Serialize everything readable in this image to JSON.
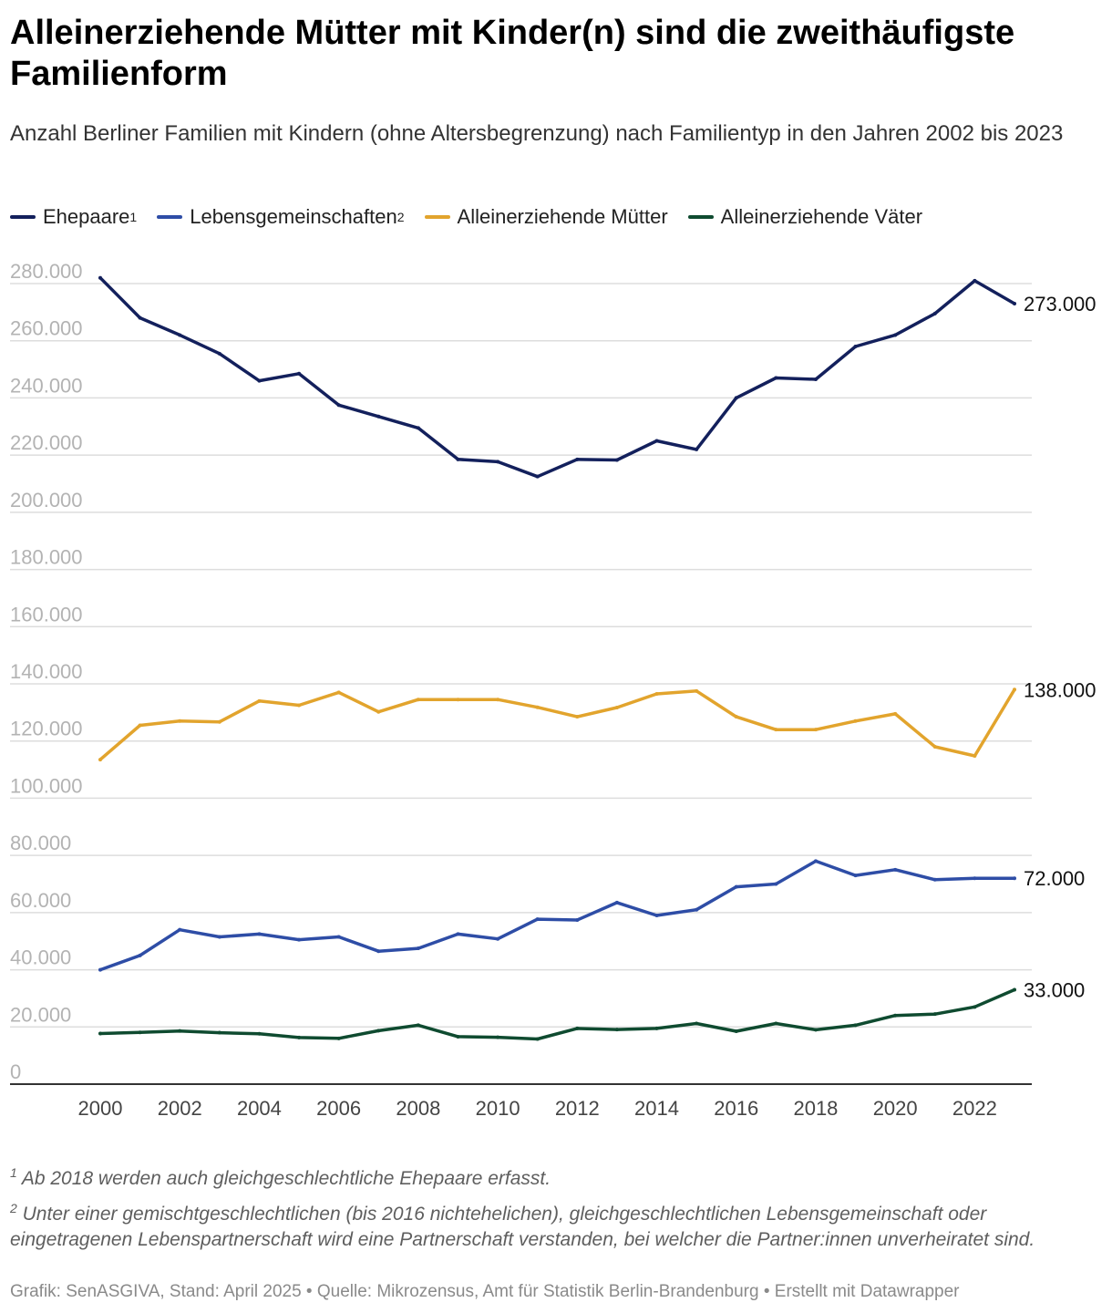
{
  "header": {
    "title": "Alleinerziehende Mütter mit Kinder(n) sind die zweithäufigste Familienform",
    "subtitle": "Anzahl Berliner Familien mit Kindern (ohne Altersbegrenzung) nach Familientyp in den Jahren 2002 bis 2023"
  },
  "legend": [
    {
      "label": "Ehepaare",
      "sup": "1",
      "color": "#13205c"
    },
    {
      "label": "Lebensgemeinschaften",
      "sup": "2",
      "color": "#2e4da6"
    },
    {
      "label": "Alleinerziehende Mütter",
      "sup": "",
      "color": "#e2a42d"
    },
    {
      "label": "Alleinerziehende Väter",
      "sup": "",
      "color": "#0f4b30"
    }
  ],
  "chart_data": {
    "type": "line",
    "title": "Alleinerziehende Mütter mit Kinder(n) sind die zweithäufigste Familienform",
    "xlabel": "",
    "ylabel": "",
    "ylim": [
      0,
      280000
    ],
    "grid": true,
    "x": [
      2000,
      2001,
      2002,
      2003,
      2004,
      2005,
      2006,
      2007,
      2008,
      2009,
      2010,
      2011,
      2012,
      2013,
      2014,
      2015,
      2016,
      2017,
      2018,
      2019,
      2020,
      2021,
      2022,
      2023
    ],
    "x_ticks": [
      2000,
      2002,
      2004,
      2006,
      2008,
      2010,
      2012,
      2014,
      2016,
      2018,
      2020,
      2022
    ],
    "x_tick_labels": [
      "2000",
      "2002",
      "2004",
      "2006",
      "2008",
      "2010",
      "2012",
      "2014",
      "2016",
      "2018",
      "2020",
      "2022"
    ],
    "y_ticks": [
      0,
      20000,
      40000,
      60000,
      80000,
      100000,
      120000,
      140000,
      160000,
      180000,
      200000,
      220000,
      240000,
      260000,
      280000
    ],
    "y_tick_labels": [
      "0",
      "20.000",
      "40.000",
      "60.000",
      "80.000",
      "100.000",
      "120.000",
      "140.000",
      "160.000",
      "180.000",
      "200.000",
      "220.000",
      "240.000",
      "260.000",
      "280.000"
    ],
    "series": [
      {
        "name": "Ehepaare",
        "color": "#13205c",
        "end_label": "273.000",
        "values": [
          282000,
          268000,
          262000,
          255500,
          246000,
          248500,
          237500,
          233500,
          229500,
          218500,
          217700,
          212500,
          218500,
          218300,
          225000,
          222000,
          240000,
          247000,
          246500,
          258000,
          262000,
          269500,
          281000,
          273000
        ]
      },
      {
        "name": "Lebensgemeinschaften",
        "color": "#2e4da6",
        "end_label": "72.000",
        "values": [
          40000,
          45000,
          54000,
          51500,
          52500,
          50500,
          51500,
          46500,
          47500,
          52500,
          50800,
          57700,
          57400,
          63500,
          59000,
          61000,
          69000,
          70000,
          78000,
          73000,
          75000,
          71500,
          72000,
          72000
        ]
      },
      {
        "name": "Alleinerziehende Mütter",
        "color": "#e2a42d",
        "end_label": "138.000",
        "values": [
          113500,
          125500,
          127000,
          126700,
          134000,
          132500,
          137000,
          130200,
          134500,
          134500,
          134500,
          131800,
          128500,
          131700,
          136500,
          137500,
          128500,
          124000,
          124000,
          127000,
          129500,
          118000,
          114800,
          138000
        ]
      },
      {
        "name": "Alleinerziehende Väter",
        "color": "#0f4b30",
        "end_label": "33.000",
        "values": [
          17700,
          18100,
          18600,
          18000,
          17600,
          16300,
          16000,
          18700,
          20600,
          16600,
          16400,
          15800,
          19500,
          19100,
          19500,
          21200,
          18500,
          21200,
          19000,
          20600,
          24000,
          24500,
          27000,
          33000
        ]
      }
    ]
  },
  "footnotes": {
    "note1_mark": "1",
    "note1_text": "Ab 2018 werden auch gleichgeschlechtliche Ehepaare erfasst.",
    "note2_mark": "2",
    "note2_text": "Unter einer gemischtgeschlechtlichen (bis 2016 nichtehelichen), gleichgeschlechtlichen Lebensgemeinschaft oder eingetragenen Lebenspartnerschaft wird eine Partnerschaft verstanden, bei welcher die Partner:innen unverheiratet sind."
  },
  "credit": "Grafik: SenASGIVA, Stand: April 2025 • Quelle: Mikrozensus, Amt für Statistik Berlin-Brandenburg • Erstellt mit Datawrapper"
}
